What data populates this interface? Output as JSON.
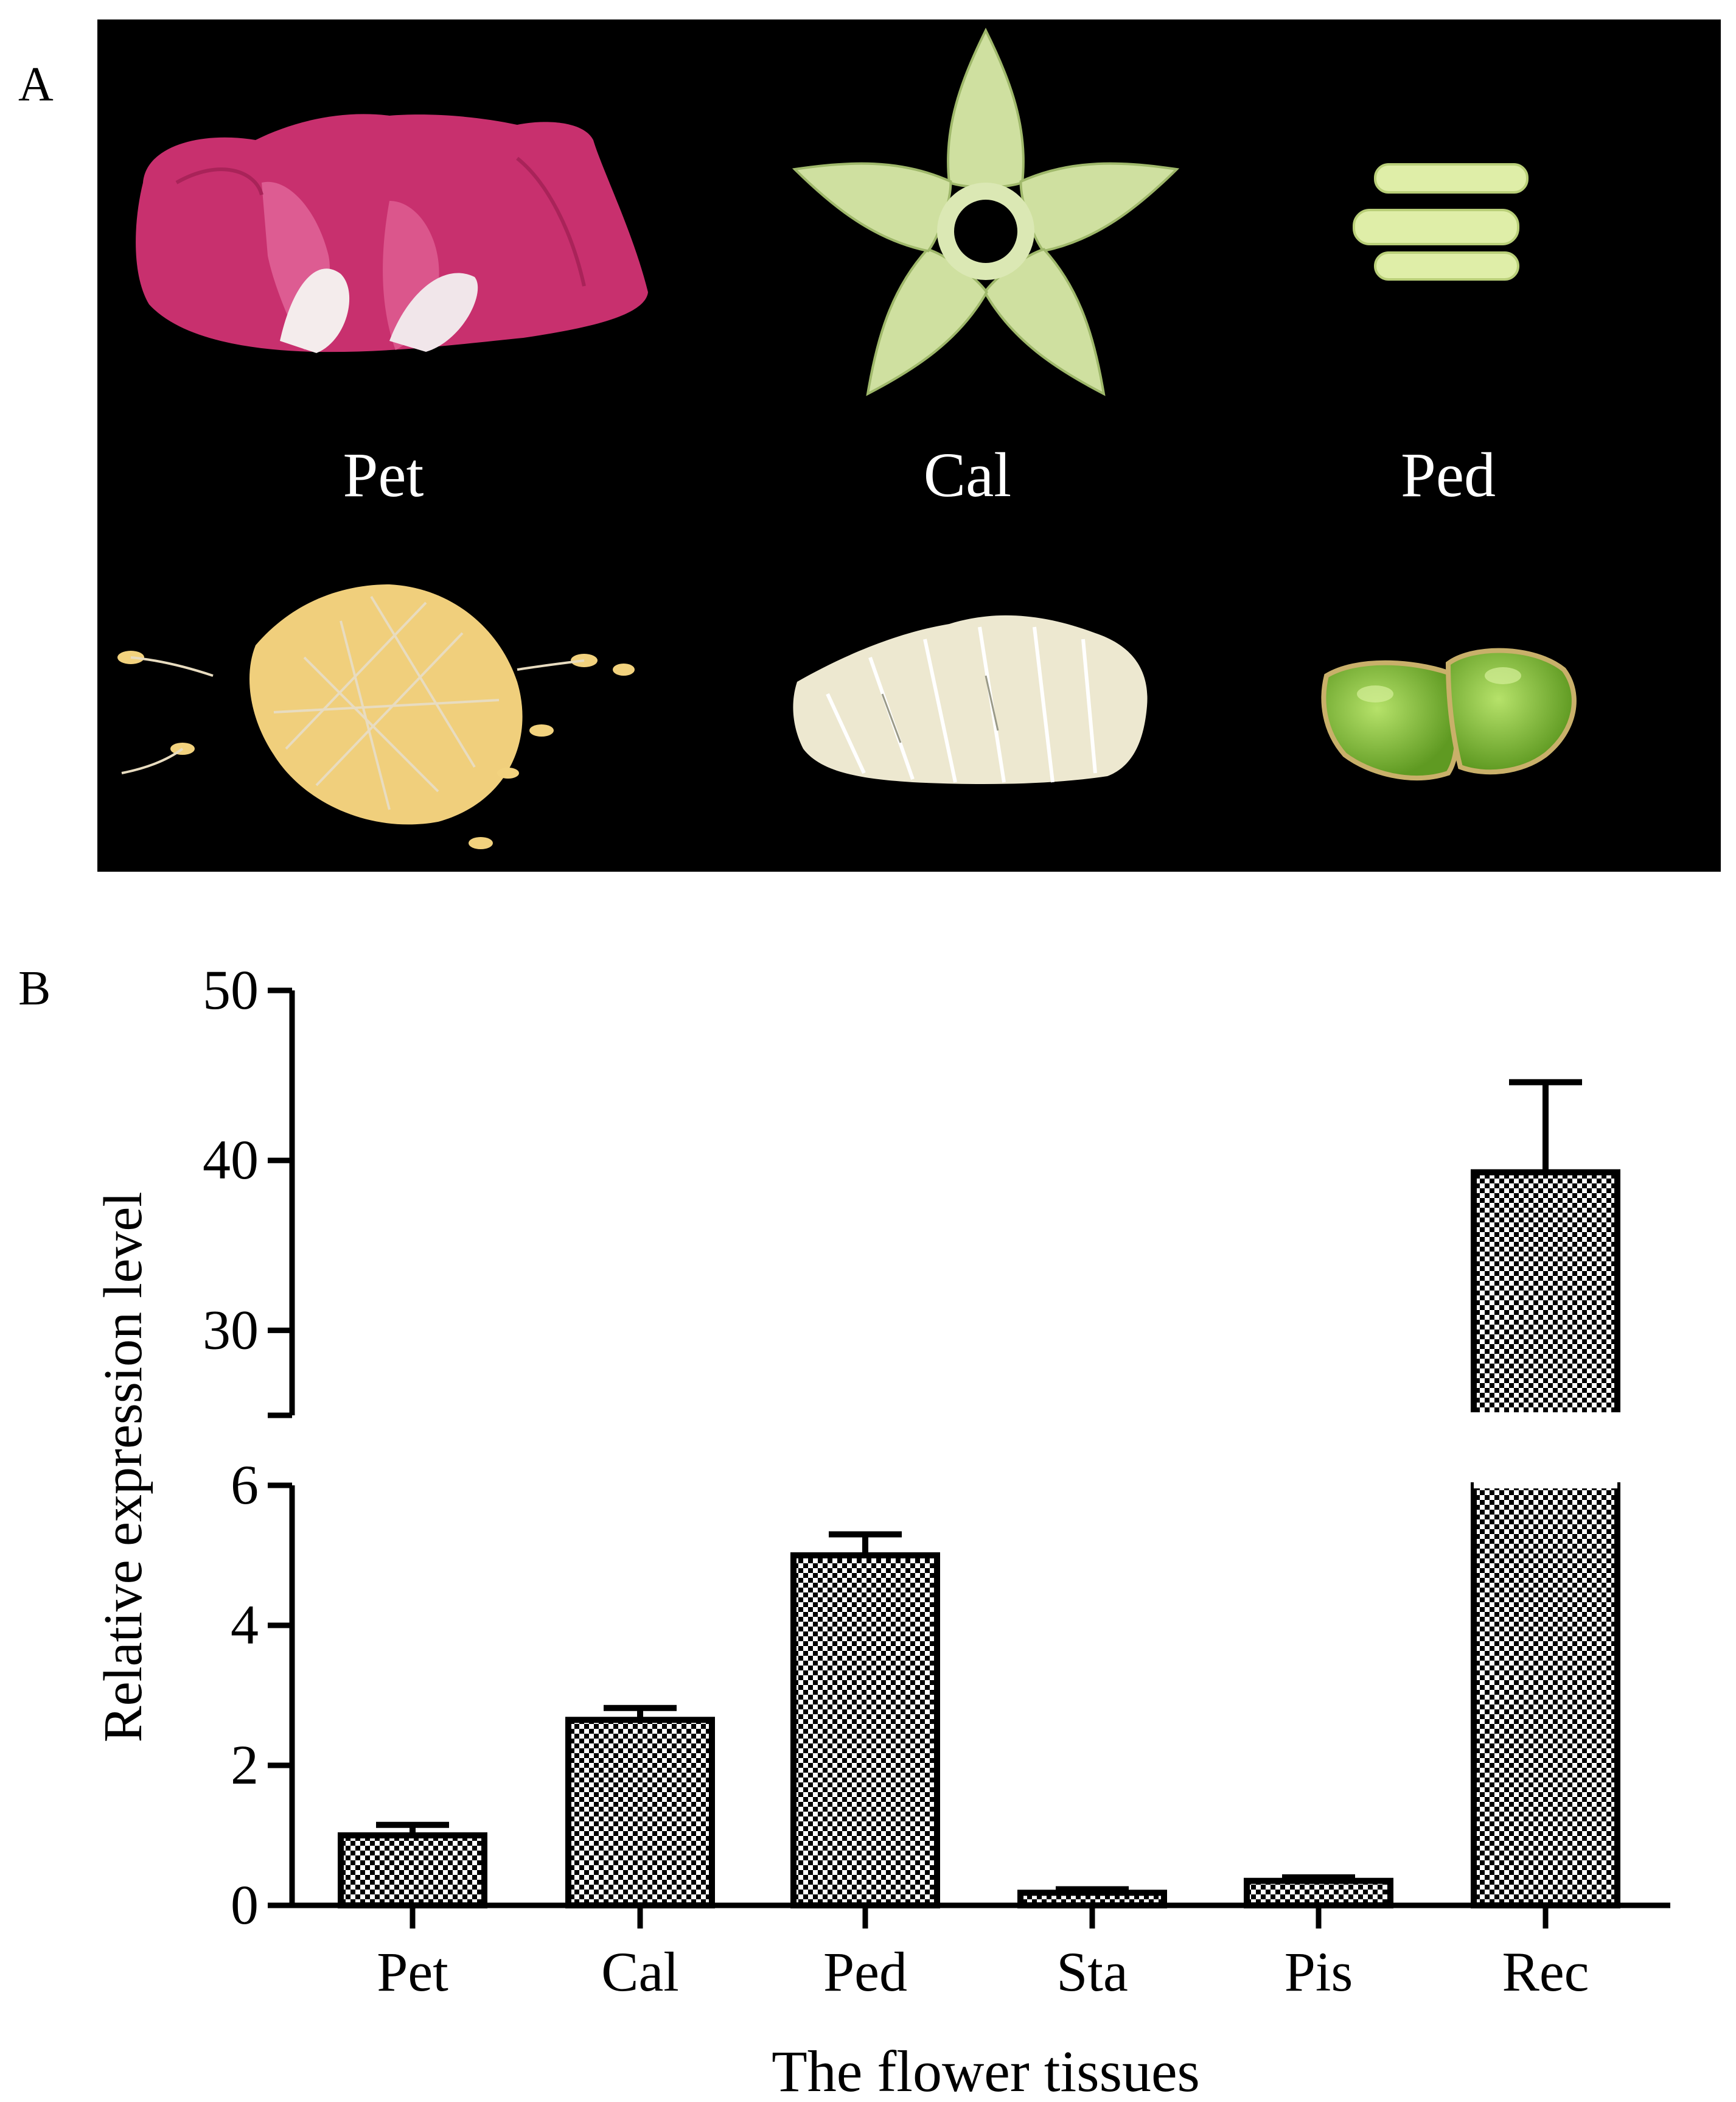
{
  "panel_a": {
    "label": "A",
    "tissues": [
      {
        "label": "Pet"
      },
      {
        "label": "Cal"
      },
      {
        "label": "Ped"
      }
    ]
  },
  "panel_b": {
    "label": "B"
  },
  "colors": {
    "photo_background": "#000000",
    "petal": "#c8306e",
    "calyx": "#cfe0a0",
    "pedicel": "#dfeea8",
    "stamen": "#f0cf7c",
    "pistil": "#ede8d0",
    "receptacle": "#86c03a",
    "bar_fill_pattern": "checkerboard black/white",
    "axis": "#000000"
  },
  "chart_data": {
    "type": "bar",
    "title": "",
    "xlabel": "The flower tissues",
    "ylabel": "Relative expression level",
    "categories": [
      "Pet",
      "Cal",
      "Ped",
      "Sta",
      "Pis",
      "Rec"
    ],
    "series": [
      {
        "name": "Relative expression level",
        "values": [
          1.0,
          2.65,
          5.0,
          0.18,
          0.35,
          39.3
        ],
        "errors": [
          0.15,
          0.17,
          0.3,
          0.05,
          0.05,
          5.3
        ]
      }
    ],
    "axis_break": {
      "lower": [
        0,
        6
      ],
      "upper": [
        25,
        50
      ]
    },
    "yticks_lower": [
      0,
      2,
      4,
      6
    ],
    "yticks_upper": [
      30,
      40,
      50
    ],
    "ytick_labels_lower": [
      "0",
      "2",
      "4",
      "6"
    ],
    "ytick_labels_upper": [
      "30",
      "40",
      "50"
    ],
    "grid": false,
    "legend": "none"
  }
}
